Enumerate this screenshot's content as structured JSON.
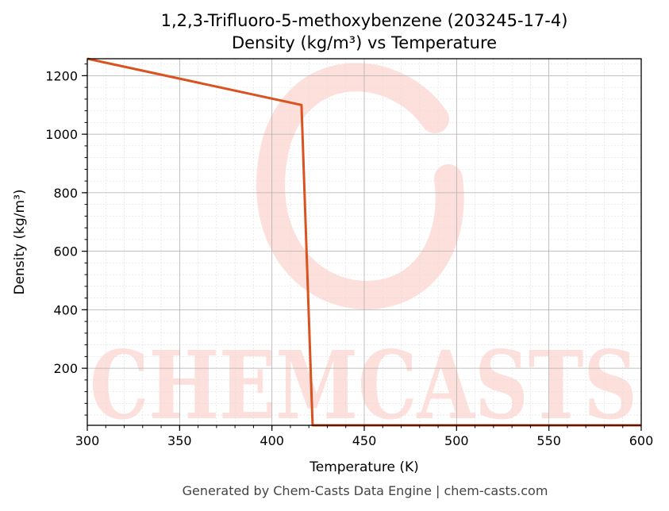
{
  "chart_data": {
    "type": "line",
    "title": "1,2,3-Trifluoro-5-methoxybenzene (203245-17-4)",
    "subtitle": "Density (kg/m³) vs Temperature",
    "xlabel": "Temperature (K)",
    "ylabel": "Density (kg/m³)",
    "xlim": [
      300,
      600
    ],
    "ylim": [
      5,
      1258
    ],
    "xticks": [
      300,
      350,
      400,
      450,
      500,
      550,
      600
    ],
    "yticks": [
      200,
      400,
      600,
      800,
      1000,
      1200
    ],
    "grid": true,
    "line_color": "#d9521f",
    "series": [
      {
        "x": [
          300,
          416,
          422,
          600
        ],
        "y": [
          1258,
          1100,
          5,
          5
        ]
      }
    ]
  },
  "watermark": {
    "text": "CHEMCASTS",
    "color": "#fde0dc"
  },
  "footer": "Generated by Chem-Casts Data Engine | chem-casts.com"
}
